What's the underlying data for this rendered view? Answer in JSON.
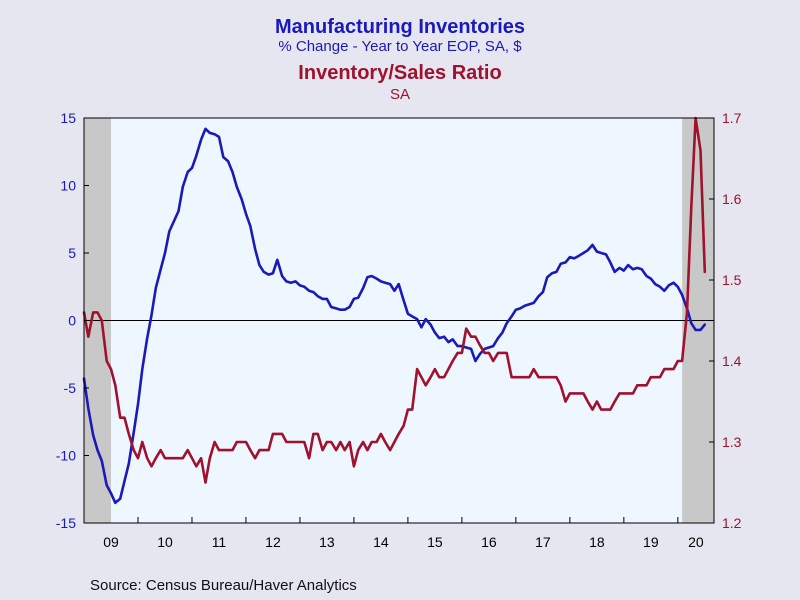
{
  "chart_data": {
    "type": "line",
    "title": "Manufacturing Inventories",
    "subtitle": "% Change - Year to Year    EOP, SA, $",
    "title2": "Inventory/Sales Ratio",
    "subtitle2": "SA",
    "source": "Source:  Census Bureau/Haver Analytics",
    "x_tick_labels": [
      "09",
      "10",
      "11",
      "12",
      "13",
      "14",
      "15",
      "16",
      "17",
      "18",
      "19",
      "20"
    ],
    "xlim": [
      2009.0,
      2020.67
    ],
    "left_axis": {
      "ylim": [
        -15,
        15
      ],
      "ticks": [
        "15",
        "10",
        "5",
        "0",
        "-5",
        "-10",
        "-15"
      ]
    },
    "right_axis": {
      "ylim": [
        1.2,
        1.7
      ],
      "ticks": [
        "1.7",
        "1.6",
        "1.5",
        "1.4",
        "1.3",
        "1.2"
      ]
    },
    "recessions": [
      [
        2009.0,
        2009.5
      ],
      [
        2020.08,
        2020.67
      ]
    ],
    "colors": {
      "inventories": "#1A1AB8",
      "ratio": "#A0112E",
      "recession": "#C8C8C8",
      "plot_bg": "#EEF6FF"
    },
    "series": [
      {
        "name": "Manufacturing Inventories",
        "axis": "left",
        "color": "#1A1AB8",
        "points": [
          [
            2009.0,
            -4.3
          ],
          [
            2009.08,
            -6.5
          ],
          [
            2009.17,
            -8.5
          ],
          [
            2009.25,
            -9.6
          ],
          [
            2009.33,
            -10.4
          ],
          [
            2009.42,
            -12.2
          ],
          [
            2009.5,
            -12.8
          ],
          [
            2009.58,
            -13.5
          ],
          [
            2009.67,
            -13.2
          ],
          [
            2009.75,
            -11.9
          ],
          [
            2009.83,
            -10.6
          ],
          [
            2009.92,
            -8.3
          ],
          [
            2010.0,
            -6.2
          ],
          [
            2010.08,
            -3.6
          ],
          [
            2010.17,
            -1.3
          ],
          [
            2010.25,
            0.4
          ],
          [
            2010.33,
            2.4
          ],
          [
            2010.42,
            3.8
          ],
          [
            2010.5,
            5.0
          ],
          [
            2010.58,
            6.6
          ],
          [
            2010.67,
            7.4
          ],
          [
            2010.75,
            8.1
          ],
          [
            2010.83,
            9.9
          ],
          [
            2010.92,
            11.0
          ],
          [
            2011.0,
            11.3
          ],
          [
            2011.08,
            12.2
          ],
          [
            2011.17,
            13.4
          ],
          [
            2011.25,
            14.2
          ],
          [
            2011.33,
            13.9
          ],
          [
            2011.42,
            13.8
          ],
          [
            2011.5,
            13.6
          ],
          [
            2011.58,
            12.1
          ],
          [
            2011.67,
            11.8
          ],
          [
            2011.75,
            11.0
          ],
          [
            2011.83,
            9.9
          ],
          [
            2011.92,
            9.0
          ],
          [
            2012.0,
            7.9
          ],
          [
            2012.08,
            7.0
          ],
          [
            2012.17,
            5.3
          ],
          [
            2012.25,
            4.1
          ],
          [
            2012.33,
            3.6
          ],
          [
            2012.42,
            3.4
          ],
          [
            2012.5,
            3.5
          ],
          [
            2012.58,
            4.5
          ],
          [
            2012.67,
            3.3
          ],
          [
            2012.75,
            2.9
          ],
          [
            2012.83,
            2.8
          ],
          [
            2012.92,
            2.9
          ],
          [
            2013.0,
            2.6
          ],
          [
            2013.08,
            2.5
          ],
          [
            2013.17,
            2.2
          ],
          [
            2013.25,
            2.1
          ],
          [
            2013.33,
            1.8
          ],
          [
            2013.42,
            1.6
          ],
          [
            2013.5,
            1.6
          ],
          [
            2013.58,
            1.0
          ],
          [
            2013.67,
            0.9
          ],
          [
            2013.75,
            0.8
          ],
          [
            2013.83,
            0.8
          ],
          [
            2013.92,
            1.0
          ],
          [
            2014.0,
            1.6
          ],
          [
            2014.08,
            1.7
          ],
          [
            2014.17,
            2.4
          ],
          [
            2014.25,
            3.2
          ],
          [
            2014.33,
            3.3
          ],
          [
            2014.42,
            3.1
          ],
          [
            2014.5,
            2.9
          ],
          [
            2014.58,
            2.8
          ],
          [
            2014.67,
            2.7
          ],
          [
            2014.75,
            2.2
          ],
          [
            2014.83,
            2.7
          ],
          [
            2014.92,
            1.5
          ],
          [
            2015.0,
            0.5
          ],
          [
            2015.08,
            0.3
          ],
          [
            2015.17,
            0.1
          ],
          [
            2015.25,
            -0.5
          ],
          [
            2015.33,
            0.1
          ],
          [
            2015.42,
            -0.3
          ],
          [
            2015.5,
            -0.9
          ],
          [
            2015.58,
            -1.3
          ],
          [
            2015.67,
            -1.2
          ],
          [
            2015.75,
            -1.6
          ],
          [
            2015.83,
            -1.4
          ],
          [
            2015.92,
            -1.9
          ],
          [
            2016.0,
            -1.9
          ],
          [
            2016.08,
            -2.0
          ],
          [
            2016.17,
            -2.1
          ],
          [
            2016.25,
            -3.0
          ],
          [
            2016.33,
            -2.5
          ],
          [
            2016.42,
            -2.1
          ],
          [
            2016.5,
            -2.0
          ],
          [
            2016.58,
            -1.9
          ],
          [
            2016.67,
            -1.3
          ],
          [
            2016.75,
            -0.9
          ],
          [
            2016.83,
            -0.2
          ],
          [
            2016.92,
            0.3
          ],
          [
            2017.0,
            0.8
          ],
          [
            2017.08,
            0.9
          ],
          [
            2017.17,
            1.1
          ],
          [
            2017.25,
            1.2
          ],
          [
            2017.33,
            1.3
          ],
          [
            2017.42,
            1.8
          ],
          [
            2017.5,
            2.1
          ],
          [
            2017.58,
            3.2
          ],
          [
            2017.67,
            3.5
          ],
          [
            2017.75,
            3.6
          ],
          [
            2017.83,
            4.2
          ],
          [
            2017.92,
            4.3
          ],
          [
            2018.0,
            4.7
          ],
          [
            2018.08,
            4.6
          ],
          [
            2018.17,
            4.8
          ],
          [
            2018.25,
            5.0
          ],
          [
            2018.33,
            5.2
          ],
          [
            2018.42,
            5.6
          ],
          [
            2018.5,
            5.1
          ],
          [
            2018.58,
            5.0
          ],
          [
            2018.67,
            4.9
          ],
          [
            2018.75,
            4.3
          ],
          [
            2018.83,
            3.6
          ],
          [
            2018.92,
            3.9
          ],
          [
            2019.0,
            3.7
          ],
          [
            2019.08,
            4.1
          ],
          [
            2019.17,
            3.8
          ],
          [
            2019.25,
            3.9
          ],
          [
            2019.33,
            3.8
          ],
          [
            2019.42,
            3.3
          ],
          [
            2019.5,
            3.1
          ],
          [
            2019.58,
            2.7
          ],
          [
            2019.67,
            2.5
          ],
          [
            2019.75,
            2.2
          ],
          [
            2019.83,
            2.6
          ],
          [
            2019.92,
            2.8
          ],
          [
            2020.0,
            2.5
          ],
          [
            2020.08,
            1.9
          ],
          [
            2020.17,
            0.9
          ],
          [
            2020.25,
            -0.2
          ],
          [
            2020.33,
            -0.7
          ],
          [
            2020.42,
            -0.7
          ],
          [
            2020.5,
            -0.3
          ]
        ]
      },
      {
        "name": "Inventory/Sales Ratio",
        "axis": "right",
        "color": "#A0112E",
        "points": [
          [
            2009.0,
            1.46
          ],
          [
            2009.08,
            1.43
          ],
          [
            2009.17,
            1.46
          ],
          [
            2009.25,
            1.46
          ],
          [
            2009.33,
            1.45
          ],
          [
            2009.42,
            1.4
          ],
          [
            2009.5,
            1.39
          ],
          [
            2009.58,
            1.37
          ],
          [
            2009.67,
            1.33
          ],
          [
            2009.75,
            1.33
          ],
          [
            2009.83,
            1.31
          ],
          [
            2009.92,
            1.29
          ],
          [
            2010.0,
            1.28
          ],
          [
            2010.08,
            1.3
          ],
          [
            2010.17,
            1.28
          ],
          [
            2010.25,
            1.27
          ],
          [
            2010.33,
            1.28
          ],
          [
            2010.42,
            1.29
          ],
          [
            2010.5,
            1.28
          ],
          [
            2010.58,
            1.28
          ],
          [
            2010.67,
            1.28
          ],
          [
            2010.75,
            1.28
          ],
          [
            2010.83,
            1.28
          ],
          [
            2010.92,
            1.29
          ],
          [
            2011.0,
            1.28
          ],
          [
            2011.08,
            1.27
          ],
          [
            2011.17,
            1.28
          ],
          [
            2011.25,
            1.25
          ],
          [
            2011.33,
            1.28
          ],
          [
            2011.42,
            1.3
          ],
          [
            2011.5,
            1.29
          ],
          [
            2011.58,
            1.29
          ],
          [
            2011.67,
            1.29
          ],
          [
            2011.75,
            1.29
          ],
          [
            2011.83,
            1.3
          ],
          [
            2011.92,
            1.3
          ],
          [
            2012.0,
            1.3
          ],
          [
            2012.08,
            1.29
          ],
          [
            2012.17,
            1.28
          ],
          [
            2012.25,
            1.29
          ],
          [
            2012.33,
            1.29
          ],
          [
            2012.42,
            1.29
          ],
          [
            2012.5,
            1.31
          ],
          [
            2012.58,
            1.31
          ],
          [
            2012.67,
            1.31
          ],
          [
            2012.75,
            1.3
          ],
          [
            2012.83,
            1.3
          ],
          [
            2012.92,
            1.3
          ],
          [
            2013.0,
            1.3
          ],
          [
            2013.08,
            1.3
          ],
          [
            2013.17,
            1.28
          ],
          [
            2013.25,
            1.31
          ],
          [
            2013.33,
            1.31
          ],
          [
            2013.42,
            1.29
          ],
          [
            2013.5,
            1.3
          ],
          [
            2013.58,
            1.3
          ],
          [
            2013.67,
            1.29
          ],
          [
            2013.75,
            1.3
          ],
          [
            2013.83,
            1.29
          ],
          [
            2013.92,
            1.3
          ],
          [
            2014.0,
            1.27
          ],
          [
            2014.08,
            1.29
          ],
          [
            2014.17,
            1.3
          ],
          [
            2014.25,
            1.29
          ],
          [
            2014.33,
            1.3
          ],
          [
            2014.42,
            1.3
          ],
          [
            2014.5,
            1.31
          ],
          [
            2014.58,
            1.3
          ],
          [
            2014.67,
            1.29
          ],
          [
            2014.75,
            1.3
          ],
          [
            2014.83,
            1.31
          ],
          [
            2014.92,
            1.32
          ],
          [
            2015.0,
            1.34
          ],
          [
            2015.08,
            1.34
          ],
          [
            2015.17,
            1.39
          ],
          [
            2015.25,
            1.38
          ],
          [
            2015.33,
            1.37
          ],
          [
            2015.42,
            1.38
          ],
          [
            2015.5,
            1.39
          ],
          [
            2015.58,
            1.38
          ],
          [
            2015.67,
            1.38
          ],
          [
            2015.75,
            1.39
          ],
          [
            2015.83,
            1.4
          ],
          [
            2015.92,
            1.41
          ],
          [
            2016.0,
            1.41
          ],
          [
            2016.08,
            1.44
          ],
          [
            2016.17,
            1.43
          ],
          [
            2016.25,
            1.43
          ],
          [
            2016.33,
            1.42
          ],
          [
            2016.42,
            1.41
          ],
          [
            2016.5,
            1.41
          ],
          [
            2016.58,
            1.4
          ],
          [
            2016.67,
            1.41
          ],
          [
            2016.75,
            1.41
          ],
          [
            2016.83,
            1.41
          ],
          [
            2016.92,
            1.38
          ],
          [
            2017.0,
            1.38
          ],
          [
            2017.08,
            1.38
          ],
          [
            2017.17,
            1.38
          ],
          [
            2017.25,
            1.38
          ],
          [
            2017.33,
            1.39
          ],
          [
            2017.42,
            1.38
          ],
          [
            2017.5,
            1.38
          ],
          [
            2017.58,
            1.38
          ],
          [
            2017.67,
            1.38
          ],
          [
            2017.75,
            1.38
          ],
          [
            2017.83,
            1.37
          ],
          [
            2017.92,
            1.35
          ],
          [
            2018.0,
            1.36
          ],
          [
            2018.08,
            1.36
          ],
          [
            2018.17,
            1.36
          ],
          [
            2018.25,
            1.36
          ],
          [
            2018.33,
            1.35
          ],
          [
            2018.42,
            1.34
          ],
          [
            2018.5,
            1.35
          ],
          [
            2018.58,
            1.34
          ],
          [
            2018.67,
            1.34
          ],
          [
            2018.75,
            1.34
          ],
          [
            2018.83,
            1.35
          ],
          [
            2018.92,
            1.36
          ],
          [
            2019.0,
            1.36
          ],
          [
            2019.08,
            1.36
          ],
          [
            2019.17,
            1.36
          ],
          [
            2019.25,
            1.37
          ],
          [
            2019.33,
            1.37
          ],
          [
            2019.42,
            1.37
          ],
          [
            2019.5,
            1.38
          ],
          [
            2019.58,
            1.38
          ],
          [
            2019.67,
            1.38
          ],
          [
            2019.75,
            1.39
          ],
          [
            2019.83,
            1.39
          ],
          [
            2019.92,
            1.39
          ],
          [
            2020.0,
            1.4
          ],
          [
            2020.08,
            1.4
          ],
          [
            2020.17,
            1.46
          ],
          [
            2020.25,
            1.59
          ],
          [
            2020.33,
            1.7
          ],
          [
            2020.42,
            1.66
          ],
          [
            2020.5,
            1.51
          ]
        ]
      }
    ],
    "grid": false,
    "legend": "none"
  }
}
